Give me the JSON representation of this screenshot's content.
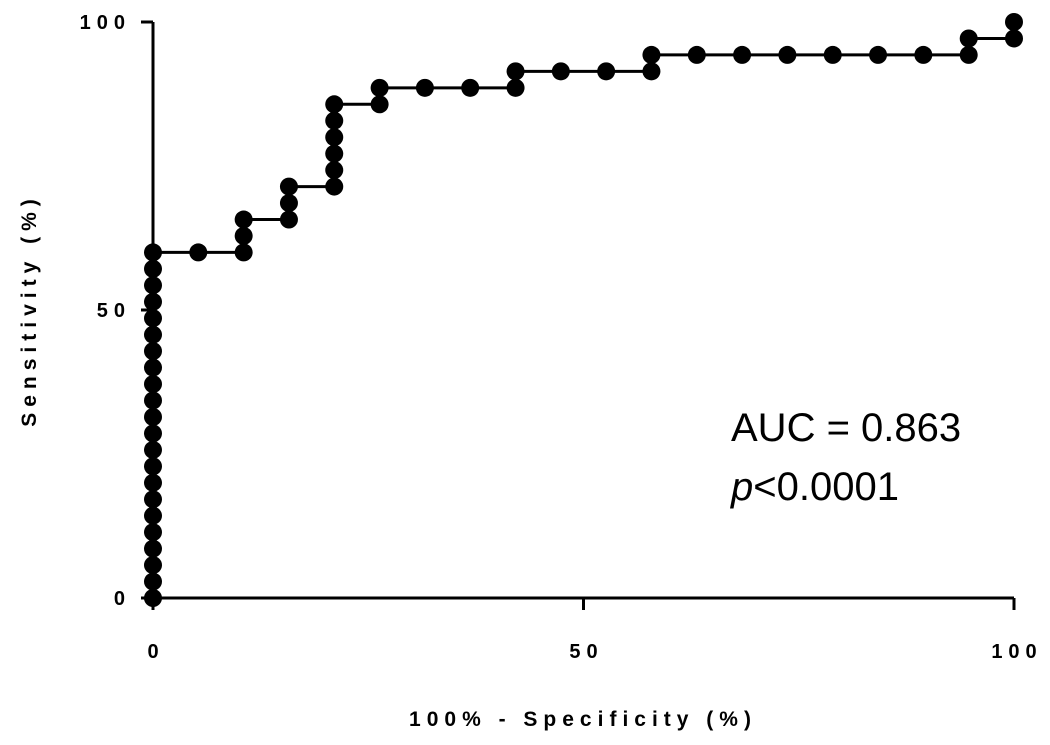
{
  "chart_data": {
    "type": "line",
    "x_label": "100% - Specificity (%)",
    "y_label": "Sensitivity (%)",
    "x": [
      0,
      0,
      0,
      0,
      0,
      0,
      0,
      0,
      0,
      0,
      0,
      0,
      0,
      0,
      0,
      0,
      0,
      0,
      0,
      0,
      0,
      0,
      5.26,
      10.53,
      10.53,
      10.53,
      15.79,
      15.79,
      15.79,
      21.05,
      21.05,
      21.05,
      21.05,
      21.05,
      21.05,
      26.32,
      26.32,
      31.58,
      36.84,
      42.11,
      42.11,
      47.37,
      52.63,
      57.89,
      57.89,
      63.16,
      68.42,
      73.68,
      78.95,
      84.21,
      89.47,
      94.74,
      94.74,
      100,
      100
    ],
    "values": [
      0,
      2.86,
      5.71,
      8.57,
      11.43,
      14.29,
      17.14,
      20,
      22.86,
      25.71,
      28.57,
      31.43,
      34.29,
      37.14,
      40,
      42.86,
      45.71,
      48.57,
      51.43,
      54.29,
      57.14,
      60,
      60,
      60,
      62.86,
      65.71,
      65.71,
      68.57,
      71.43,
      71.43,
      74.29,
      77.14,
      80,
      82.86,
      85.71,
      85.71,
      88.57,
      88.57,
      88.57,
      88.57,
      91.43,
      91.43,
      91.43,
      91.43,
      94.29,
      94.29,
      94.29,
      94.29,
      94.29,
      94.29,
      94.29,
      94.29,
      97.14,
      97.14,
      100
    ],
    "color": "#000000",
    "xlim": [
      0,
      100
    ],
    "xticks": [
      0,
      50,
      100
    ],
    "ylim": [
      0,
      100
    ],
    "yticks": [
      0,
      50,
      100
    ],
    "annotations": [
      {
        "text": "AUC = 0.863"
      },
      {
        "parts": [
          "p",
          "<0.0001"
        ]
      }
    ]
  }
}
